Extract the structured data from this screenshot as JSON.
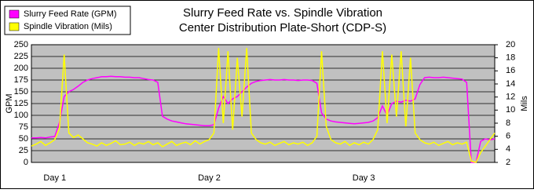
{
  "chart_data": {
    "type": "line",
    "title": "Slurry Feed Rate vs. Spindle Vibration",
    "subtitle": "Center Distribution Plate-Short (CDP-S)",
    "y_label": "GPM",
    "y2_label": "Mils",
    "categories": [
      null,
      null,
      null,
      null,
      null,
      "Day 1",
      null,
      null,
      null,
      null,
      null,
      null,
      null,
      null,
      null,
      null,
      null,
      null,
      null,
      null,
      null,
      null,
      null,
      null,
      null,
      null,
      null,
      null,
      null,
      null,
      null,
      null,
      null,
      null,
      null,
      null,
      null,
      null,
      "Day 2",
      null,
      null,
      null,
      null,
      null,
      null,
      null,
      null,
      null,
      null,
      null,
      null,
      null,
      null,
      null,
      null,
      null,
      null,
      null,
      null,
      null,
      null,
      null,
      null,
      null,
      null,
      null,
      null,
      null,
      null,
      null,
      null,
      "Day 3",
      null,
      null,
      null,
      null,
      null,
      null,
      null,
      null,
      null,
      null,
      null,
      null,
      null,
      null,
      null,
      null,
      null,
      null,
      null,
      null,
      null,
      null,
      null,
      null,
      null,
      null,
      null,
      null
    ],
    "series": [
      {
        "name": "Slurry Feed Rate (GPM)",
        "color": "#ff00ff",
        "values": [
          52,
          52,
          53,
          52,
          54,
          55,
          85,
          140,
          150,
          155,
          162,
          170,
          175,
          178,
          180,
          182,
          182,
          183,
          182,
          182,
          181,
          181,
          180,
          180,
          178,
          176,
          175,
          170,
          98,
          92,
          88,
          86,
          84,
          82,
          81,
          80,
          79,
          78,
          78,
          80,
          115,
          140,
          125,
          135,
          140,
          150,
          160,
          168,
          172,
          174,
          175,
          176,
          175,
          175,
          176,
          175,
          175,
          174,
          175,
          175,
          174,
          168,
          105,
          92,
          88,
          86,
          85,
          84,
          83,
          82,
          83,
          84,
          85,
          88,
          95,
          120,
          100,
          125,
          130,
          128,
          132,
          130,
          135,
          165,
          180,
          181,
          180,
          180,
          181,
          180,
          179,
          178,
          177,
          170,
          0,
          0,
          45,
          50,
          48,
          50
        ]
      },
      {
        "name": "Spindle Vibration (Mils)",
        "color": "#ffff00",
        "axis": "y2",
        "values": [
          4.5,
          4.8,
          5.2,
          4.6,
          5.0,
          5.5,
          7.2,
          18.5,
          6.5,
          5.8,
          6.2,
          5.6,
          5.0,
          4.8,
          4.5,
          5.0,
          4.6,
          4.9,
          5.3,
          4.7,
          4.8,
          5.1,
          4.6,
          5.0,
          4.8,
          5.2,
          4.7,
          5.0,
          4.4,
          4.8,
          5.2,
          4.6,
          4.9,
          5.1,
          4.7,
          5.3,
          4.8,
          5.2,
          5.5,
          6.5,
          19.5,
          8.0,
          19.0,
          7.0,
          18.0,
          9.0,
          19.5,
          6.5,
          5.5,
          5.0,
          4.8,
          5.1,
          4.6,
          4.9,
          5.2,
          4.7,
          5.0,
          4.8,
          5.1,
          4.6,
          5.0,
          6.0,
          19.0,
          7.5,
          5.5,
          5.0,
          4.8,
          5.2,
          4.6,
          5.0,
          4.7,
          5.1,
          4.8,
          5.5,
          7.0,
          19.0,
          8.0,
          18.5,
          9.0,
          19.0,
          7.5,
          18.0,
          6.5,
          5.5,
          5.0,
          4.8,
          5.1,
          4.6,
          4.9,
          5.2,
          4.7,
          5.0,
          4.8,
          5.1,
          2.2,
          2.0,
          3.5,
          4.5,
          5.5,
          6.5
        ]
      }
    ],
    "ylim": [
      0,
      250
    ],
    "yticks": [
      0,
      25,
      50,
      75,
      100,
      125,
      150,
      175,
      200,
      225,
      250
    ],
    "y2lim": [
      2,
      20
    ],
    "y2ticks": [
      2,
      4,
      6,
      8,
      10,
      12,
      14,
      16,
      18,
      20
    ],
    "grid": true,
    "legend": "top-left"
  }
}
